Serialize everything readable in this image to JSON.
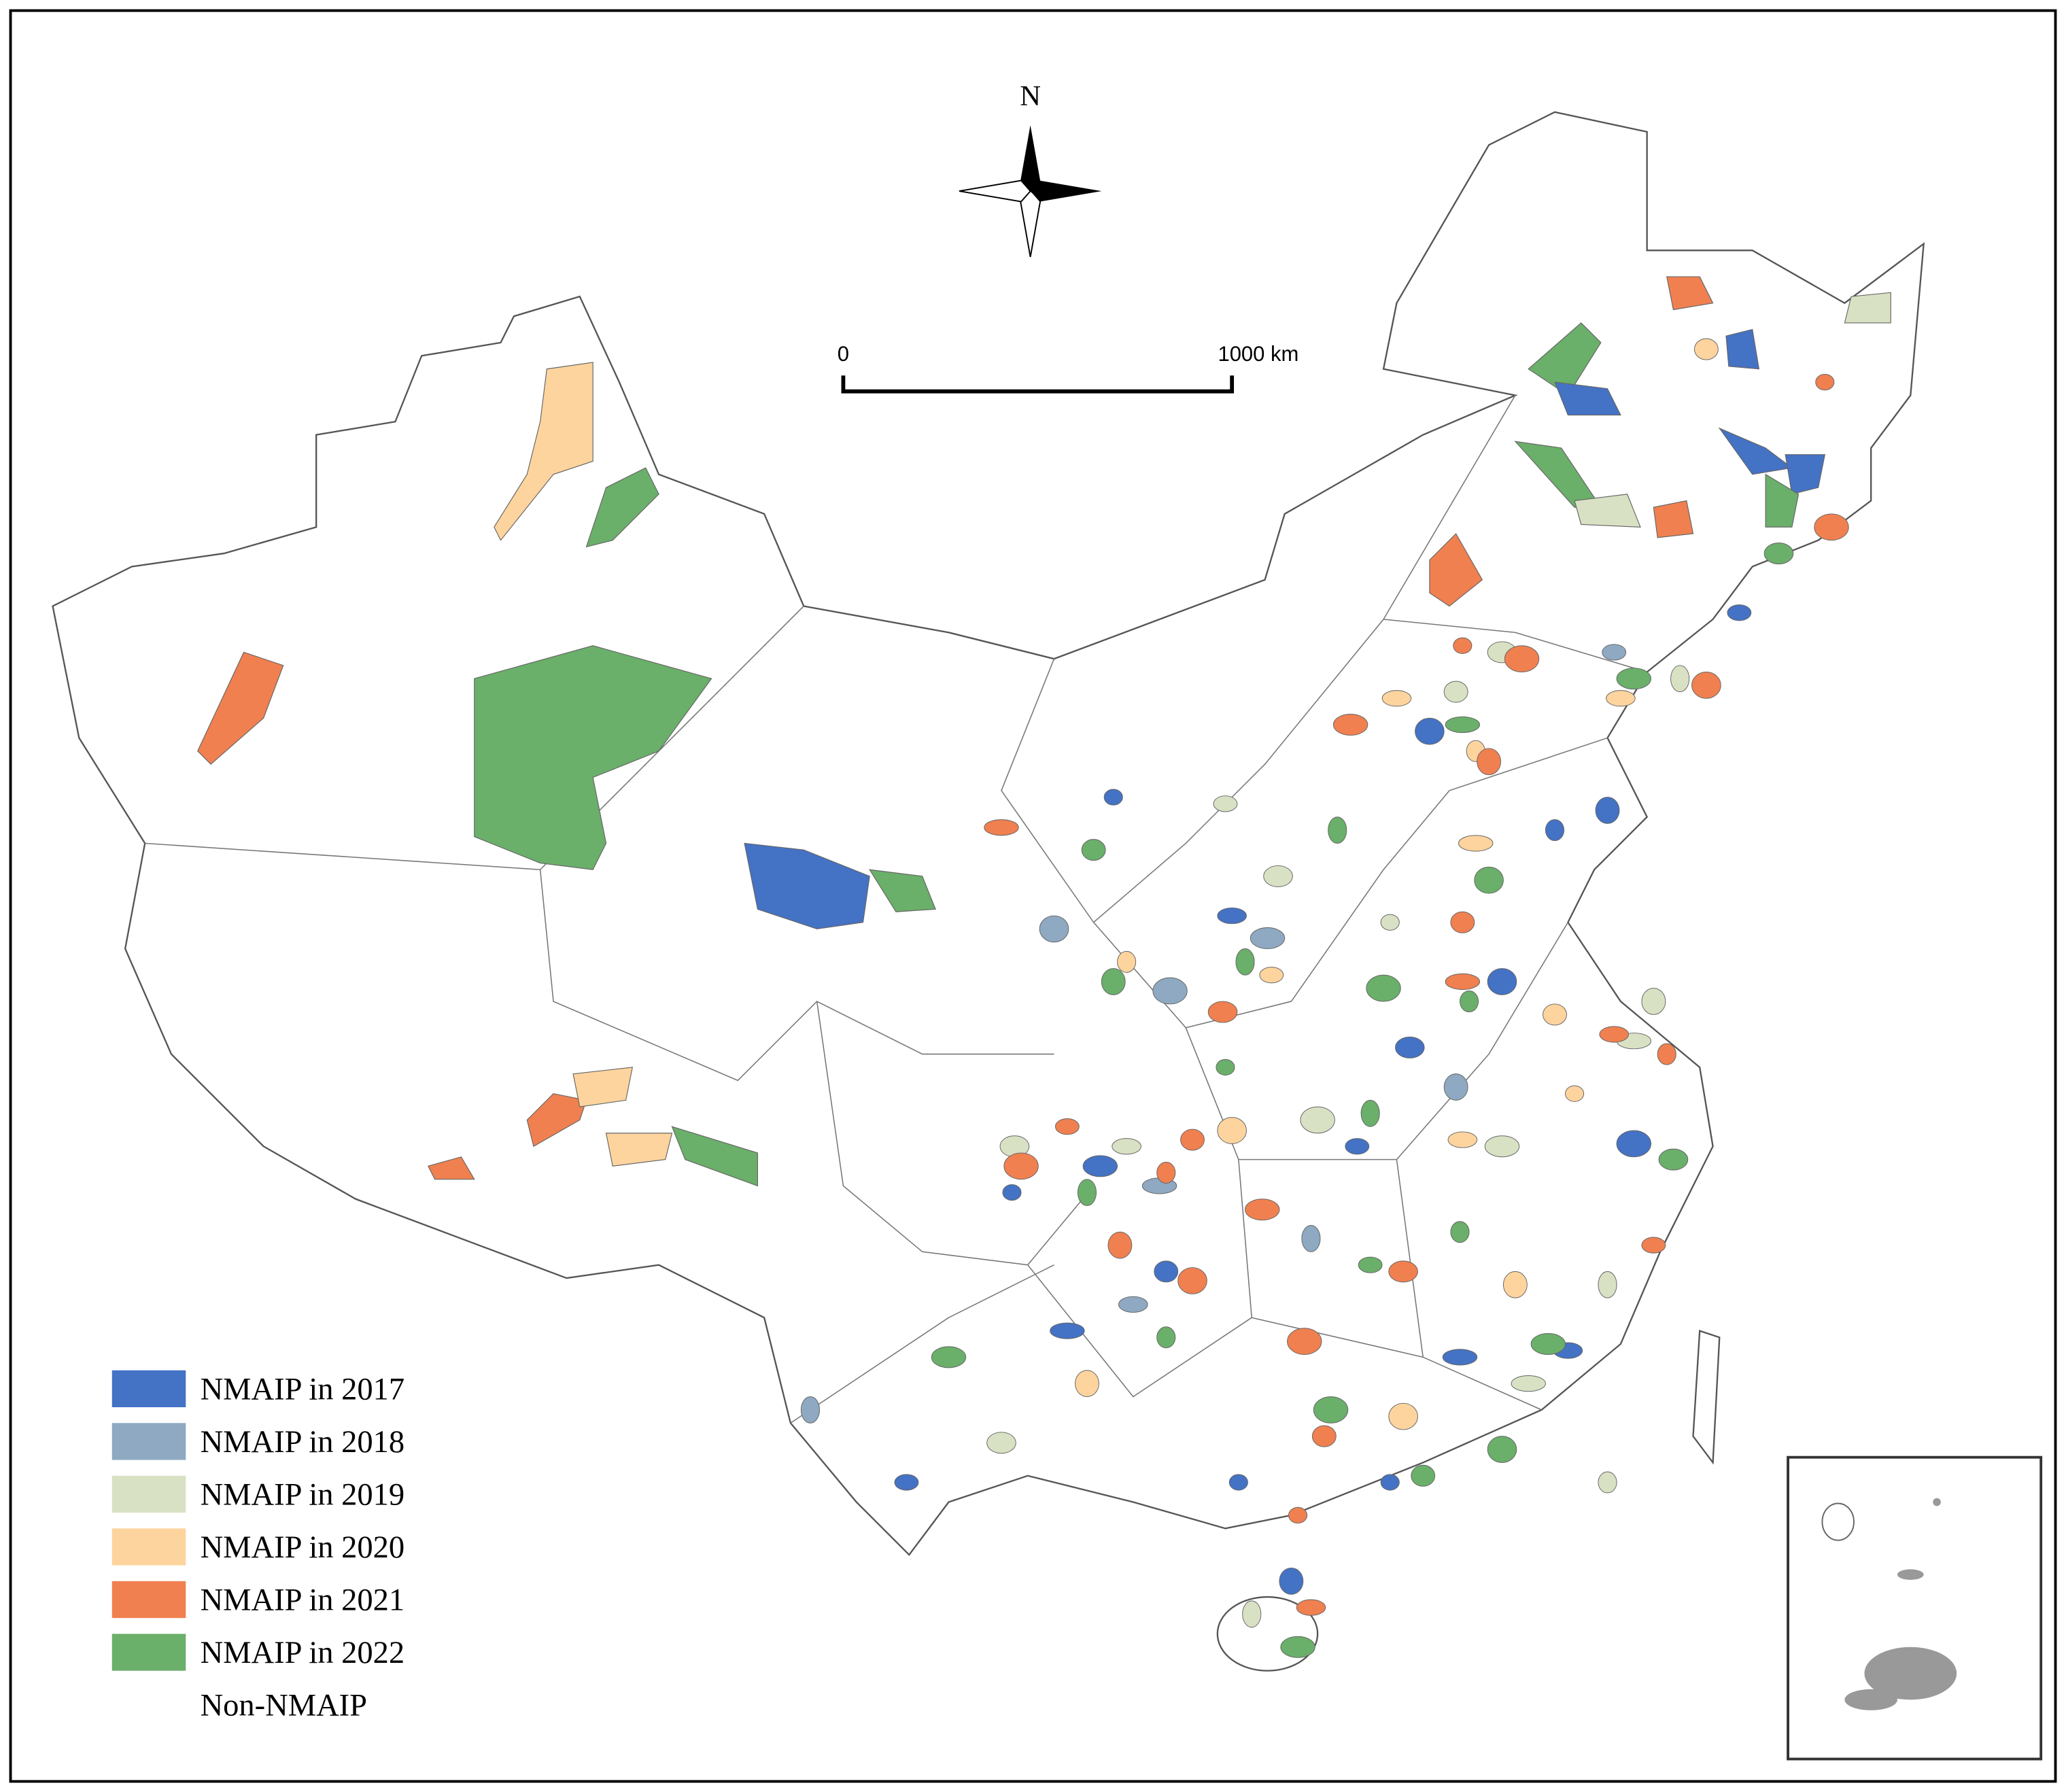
{
  "north_label": "N",
  "scale_bar": {
    "start": "0",
    "end": "1000 km"
  },
  "legend": {
    "items": [
      {
        "label": "NMAIP in 2017",
        "color": "#4472c4"
      },
      {
        "label": "NMAIP in 2018",
        "color": "#8ea9c1"
      },
      {
        "label": "NMAIP in 2019",
        "color": "#d9e1c4"
      },
      {
        "label": "NMAIP in 2020",
        "color": "#fdd49e"
      },
      {
        "label": "NMAIP in 2021",
        "color": "#f08050"
      },
      {
        "label": "NMAIP in 2022",
        "color": "#6aaf6a"
      },
      {
        "label": "Non-NMAIP"
      }
    ]
  }
}
